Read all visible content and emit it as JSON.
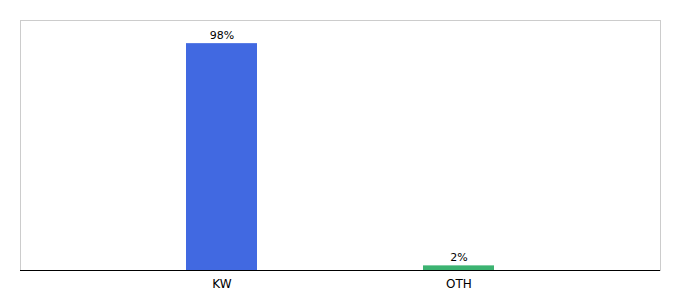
{
  "chart_data": {
    "type": "bar",
    "categories": [
      "KW",
      "OTH"
    ],
    "values": [
      98,
      2
    ],
    "value_labels": [
      "98%",
      "2%"
    ],
    "colors": [
      "#4169E1",
      "#3CB371"
    ],
    "ylim": [
      0,
      108
    ],
    "data_labels": true,
    "tick_labels": "x"
  }
}
